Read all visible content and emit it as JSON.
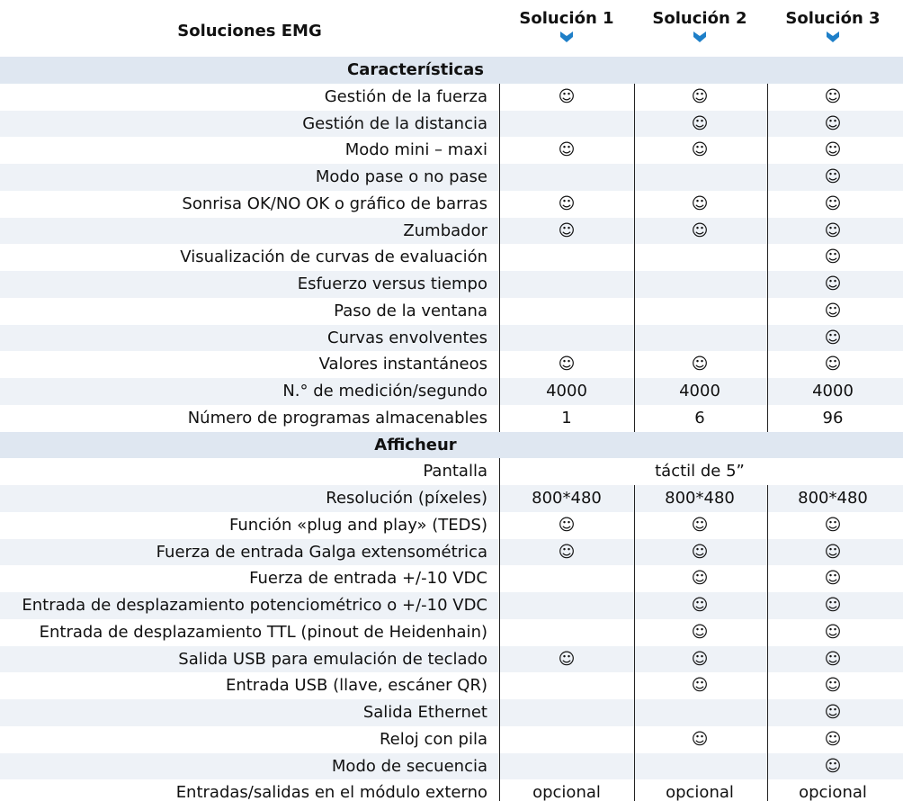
{
  "header": {
    "title": "Soluciones EMG",
    "columns": [
      "Solución 1",
      "Solución 2",
      "Solución 3"
    ]
  },
  "sections": [
    {
      "title": "Características",
      "rows": [
        [
          "Gestión de la fuerza",
          "☺",
          "☺",
          "☺"
        ],
        [
          "Gestión de la distancia",
          null,
          "☺",
          "☺"
        ],
        [
          "Modo mini – maxi",
          "☺",
          "☺",
          "☺"
        ],
        [
          "Modo pase o no pase",
          null,
          null,
          "☺"
        ],
        [
          "Sonrisa OK/NO OK o gráfico de barras",
          "☺",
          "☺",
          "☺"
        ],
        [
          "Zumbador",
          "☺",
          "☺",
          "☺"
        ],
        [
          "Visualización de curvas de evaluación",
          null,
          null,
          "☺"
        ],
        [
          "Esfuerzo versus tiempo",
          null,
          null,
          "☺"
        ],
        [
          "Paso de la ventana",
          null,
          null,
          "☺"
        ],
        [
          "Curvas envolventes",
          null,
          null,
          "☺"
        ],
        [
          "Valores instantáneos",
          "☺",
          "☺",
          "☺"
        ],
        [
          "N.° de medición/segundo",
          "4000",
          "4000",
          "4000"
        ],
        [
          "Número de programas almacenables",
          "1",
          "6",
          "96"
        ]
      ]
    },
    {
      "title": "Afficheur",
      "rows": [
        [
          "Pantalla",
          "táctil de 5”"
        ],
        [
          "Resolución (píxeles)",
          "800*480",
          "800*480",
          "800*480"
        ],
        [
          "Función «plug and play» (TEDS)",
          "☺",
          "☺",
          "☺"
        ],
        [
          "Fuerza de entrada Galga extensométrica",
          "☺",
          "☺",
          "☺"
        ],
        [
          "Fuerza de entrada +/-10 VDC",
          null,
          "☺",
          "☺"
        ],
        [
          "Entrada de desplazamiento potenciométrico o +/-10 VDC",
          null,
          "☺",
          "☺"
        ],
        [
          "Entrada de desplazamiento TTL (pinout de Heidenhain)",
          null,
          "☺",
          "☺"
        ],
        [
          "Salida USB para emulación de teclado",
          "☺",
          "☺",
          "☺"
        ],
        [
          "Entrada USB (llave, escáner QR)",
          null,
          "☺",
          "☺"
        ],
        [
          "Salida Ethernet",
          null,
          null,
          "☺"
        ],
        [
          "Reloj con pila",
          null,
          "☺",
          "☺"
        ],
        [
          "Modo de secuencia",
          null,
          null,
          "☺"
        ],
        [
          "Entradas/salidas en el módulo externo",
          "opcional",
          "opcional",
          "opcional"
        ]
      ]
    }
  ]
}
